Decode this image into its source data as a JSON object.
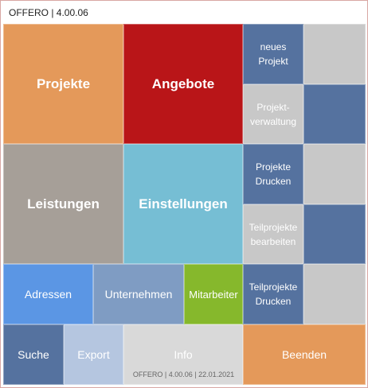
{
  "window": {
    "title": "OFFERO | 4.00.06"
  },
  "tiles": {
    "projekte": "Projekte",
    "angebote": "Angebote",
    "neues_projekt": "neues\nProjekt",
    "projektverwaltung": "Projekt-\nverwaltung",
    "leistungen": "Leistungen",
    "einstellungen": "Einstellungen",
    "projekte_drucken": "Projekte\nDrucken",
    "teilprojekte_bearbeiten": "Teilprojekte\nbearbeiten",
    "adressen": "Adressen",
    "unternehmen": "Unternehmen",
    "mitarbeiter": "Mitarbeiter",
    "teilprojekte_drucken": "Teilprojekte\nDrucken",
    "suche": "Suche",
    "export": "Export",
    "info": "Info",
    "beenden": "Beenden"
  },
  "footer": {
    "version_text": "OFFERO | 4.00.06 | 22.01.2021"
  },
  "colors": {
    "orange": "#e4995a",
    "red": "#b91518",
    "slate_blue": "#55729f",
    "light_gray": "#c8c8c8",
    "taupe": "#a69f98",
    "sky": "#76bed4",
    "blue": "#5b96e4",
    "steel": "#7f9cc3",
    "green": "#86b82c",
    "pale_blue": "#b5c6e0",
    "info_gray": "#d9d9d9"
  }
}
